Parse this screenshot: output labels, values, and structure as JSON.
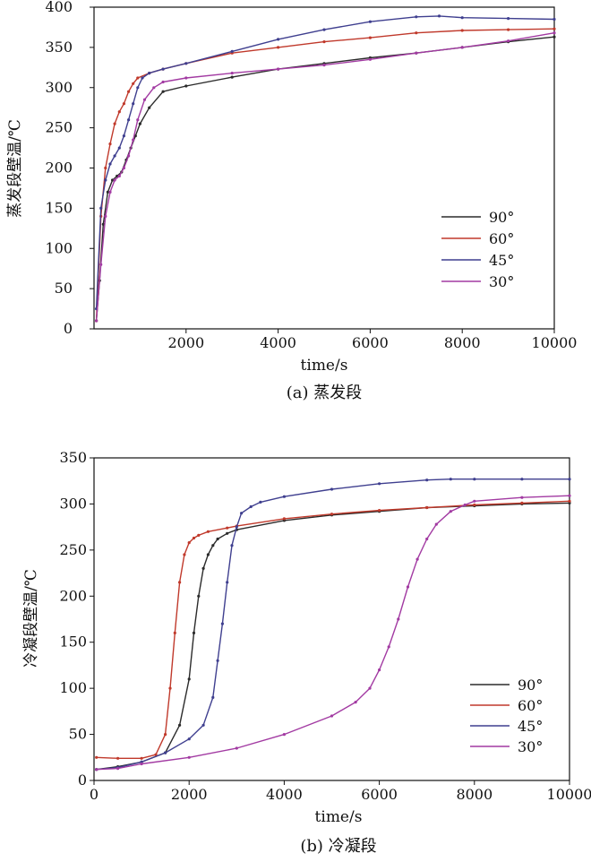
{
  "chart_data": [
    {
      "type": "line",
      "caption": "(a) 蒸发段",
      "xlabel": "time/s",
      "ylabel": "蒸发段壁温/℃",
      "xlim": [
        0,
        10000
      ],
      "ylim": [
        0,
        400
      ],
      "xticks": [
        "2000",
        "4000",
        "6000",
        "8000",
        "10000"
      ],
      "yticks": [
        "0",
        "50",
        "100",
        "150",
        "200",
        "250",
        "300",
        "350",
        "400"
      ],
      "legend_position": "center-right",
      "series": [
        {
          "name": "90°",
          "color": "#2b2b2b",
          "x": [
            50,
            120,
            200,
            300,
            400,
            500,
            600,
            700,
            800,
            900,
            1000,
            1200,
            1500,
            2000,
            3000,
            4000,
            5000,
            6000,
            7000,
            8000,
            9000,
            10000
          ],
          "y": [
            10,
            60,
            130,
            170,
            185,
            190,
            195,
            210,
            225,
            240,
            255,
            275,
            295,
            302,
            313,
            323,
            330,
            337,
            343,
            350,
            357,
            363
          ]
        },
        {
          "name": "60°",
          "color": "#c0392b",
          "x": [
            50,
            150,
            250,
            350,
            450,
            550,
            650,
            750,
            850,
            950,
            1200,
            1500,
            2000,
            3000,
            4000,
            5000,
            6000,
            7000,
            8000,
            9000,
            10000
          ],
          "y": [
            10,
            140,
            200,
            230,
            255,
            270,
            280,
            295,
            305,
            312,
            318,
            323,
            330,
            343,
            350,
            357,
            362,
            368,
            371,
            372,
            373
          ]
        },
        {
          "name": "45°",
          "color": "#3f3f8f",
          "x": [
            50,
            150,
            250,
            350,
            450,
            550,
            650,
            750,
            850,
            950,
            1050,
            1200,
            1500,
            2000,
            3000,
            4000,
            5000,
            6000,
            7000,
            7500,
            8000,
            9000,
            10000
          ],
          "y": [
            25,
            150,
            185,
            205,
            215,
            225,
            240,
            260,
            280,
            300,
            312,
            318,
            323,
            330,
            345,
            360,
            372,
            382,
            388,
            389,
            387,
            386,
            385
          ]
        },
        {
          "name": "30°",
          "color": "#a23aa2",
          "x": [
            50,
            150,
            250,
            350,
            450,
            550,
            650,
            750,
            850,
            950,
            1100,
            1300,
            1500,
            2000,
            3000,
            4000,
            5000,
            6000,
            7000,
            8000,
            9000,
            10000
          ],
          "y": [
            10,
            80,
            140,
            170,
            185,
            190,
            200,
            215,
            235,
            260,
            285,
            300,
            307,
            312,
            318,
            323,
            328,
            335,
            343,
            350,
            358,
            368
          ]
        }
      ]
    },
    {
      "type": "line",
      "caption": "(b) 冷凝段",
      "xlabel": "time/s",
      "ylabel": "冷凝段壁温/℃",
      "xlim": [
        0,
        10000
      ],
      "ylim": [
        0,
        350
      ],
      "xticks": [
        "0",
        "2000",
        "4000",
        "6000",
        "8000",
        "10000"
      ],
      "yticks": [
        "0",
        "50",
        "100",
        "150",
        "200",
        "250",
        "300",
        "350"
      ],
      "legend_position": "bottom-right",
      "series": [
        {
          "name": "90°",
          "color": "#2b2b2b",
          "x": [
            50,
            500,
            1000,
            1500,
            1800,
            2000,
            2100,
            2200,
            2300,
            2400,
            2500,
            2600,
            2800,
            3000,
            4000,
            5000,
            6000,
            7000,
            8000,
            9000,
            10000
          ],
          "y": [
            12,
            15,
            20,
            30,
            60,
            110,
            160,
            200,
            230,
            245,
            255,
            262,
            268,
            272,
            282,
            288,
            292,
            296,
            298,
            300,
            301
          ]
        },
        {
          "name": "60°",
          "color": "#c0392b",
          "x": [
            50,
            500,
            1000,
            1300,
            1500,
            1600,
            1700,
            1800,
            1900,
            2000,
            2100,
            2200,
            2400,
            2800,
            3000,
            4000,
            5000,
            6000,
            7000,
            8000,
            9000,
            10000
          ],
          "y": [
            25,
            24,
            24,
            28,
            50,
            100,
            160,
            215,
            245,
            258,
            263,
            266,
            270,
            274,
            276,
            284,
            289,
            293,
            296,
            299,
            301,
            303
          ]
        },
        {
          "name": "45°",
          "color": "#3f3f8f",
          "x": [
            50,
            500,
            1000,
            1500,
            2000,
            2300,
            2500,
            2600,
            2700,
            2800,
            2900,
            3000,
            3100,
            3300,
            3500,
            4000,
            5000,
            6000,
            7000,
            7500,
            8000,
            9000,
            10000
          ],
          "y": [
            12,
            14,
            20,
            30,
            45,
            60,
            90,
            130,
            170,
            215,
            255,
            275,
            290,
            297,
            302,
            308,
            316,
            322,
            326,
            327,
            327,
            327,
            327
          ]
        },
        {
          "name": "30°",
          "color": "#a23aa2",
          "x": [
            50,
            500,
            1000,
            2000,
            3000,
            4000,
            5000,
            5500,
            5800,
            6000,
            6200,
            6400,
            6600,
            6800,
            7000,
            7200,
            7500,
            7800,
            8000,
            9000,
            10000
          ],
          "y": [
            12,
            13,
            18,
            25,
            35,
            50,
            70,
            85,
            100,
            120,
            145,
            175,
            210,
            240,
            262,
            278,
            292,
            299,
            303,
            307,
            309
          ]
        }
      ]
    }
  ]
}
